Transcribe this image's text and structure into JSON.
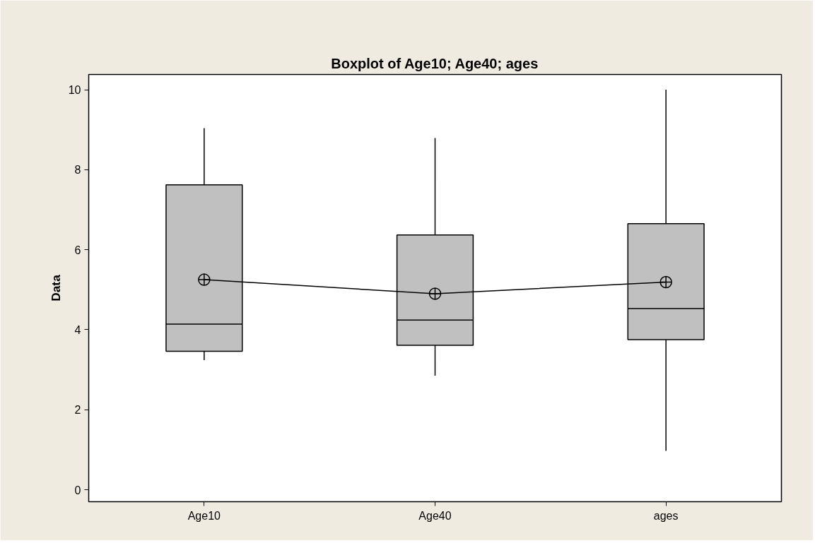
{
  "chart_data": {
    "type": "box",
    "title": "Boxplot of Age10; Age40; ages",
    "ylabel": "Data",
    "categories": [
      "Age10",
      "Age40",
      "ages"
    ],
    "boxes": [
      {
        "low": 3.24,
        "q1": 3.46,
        "median": 4.14,
        "q3": 7.62,
        "high": 9.04
      },
      {
        "low": 2.85,
        "q1": 3.61,
        "median": 4.24,
        "q3": 6.37,
        "high": 8.79
      },
      {
        "low": 0.97,
        "q1": 3.75,
        "median": 4.53,
        "q3": 6.65,
        "high": 10.0
      }
    ],
    "color": "#c0c0c0",
    "series": [
      {
        "type": "line",
        "x": [
          "Age10",
          "Age40",
          "ages"
        ],
        "values": [
          5.25,
          4.9,
          5.19
        ],
        "color": "#000000",
        "marker": "circle"
      }
    ],
    "ylim": [
      -0.3,
      10.38
    ],
    "yticks": [
      0,
      2,
      4,
      6,
      8,
      10
    ],
    "grid": false
  }
}
